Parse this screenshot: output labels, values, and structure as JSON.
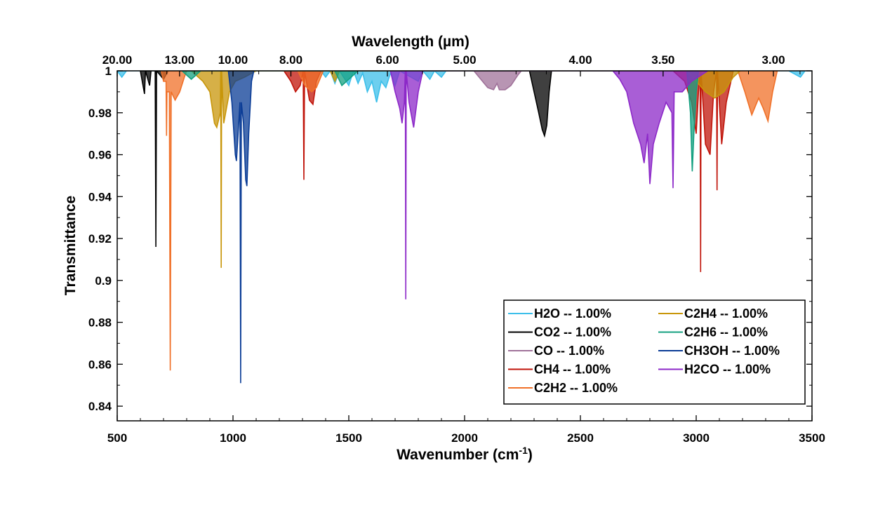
{
  "chart_data": {
    "type": "line",
    "xlabel": "Wavenumber (cm",
    "xlabel_sup": "-1",
    "xlabel_end": ")",
    "ylabel": "Transmittance",
    "top_xlabel": "Wavelength (µm)",
    "xlim": [
      500,
      3500
    ],
    "ylim": [
      0.833,
      1.0
    ],
    "x_ticks": [
      500,
      1000,
      1500,
      2000,
      2500,
      3000,
      3500
    ],
    "y_ticks": [
      0.84,
      0.86,
      0.88,
      0.9,
      0.92,
      0.94,
      0.96,
      0.98,
      1
    ],
    "y_tick_labels": [
      "0.84",
      "0.86",
      "0.88",
      "0.9",
      "0.92",
      "0.94",
      "0.96",
      "0.98",
      "1"
    ],
    "top_ticks_um": [
      20,
      13,
      10,
      8,
      6,
      5,
      4,
      3.5,
      3
    ],
    "top_tick_labels": [
      "20.00",
      "13.00",
      "10.00",
      "8.00",
      "6.00",
      "5.00",
      "4.00",
      "3.50",
      "3.00"
    ],
    "grid": false,
    "legend_position": "bottom-right",
    "series": [
      {
        "name": "H2O  --  1.00%",
        "color": "#3cbfea",
        "points": [
          [
            500,
            1
          ],
          [
            520,
            0.997
          ],
          [
            540,
            1
          ],
          [
            1380,
            1
          ],
          [
            1400,
            0.997
          ],
          [
            1420,
            1
          ],
          [
            1440,
            0.994
          ],
          [
            1460,
            1
          ],
          [
            1500,
            0.993
          ],
          [
            1520,
            1
          ],
          [
            1540,
            0.994
          ],
          [
            1560,
            0.999
          ],
          [
            1580,
            0.99
          ],
          [
            1600,
            0.995
          ],
          [
            1620,
            0.985
          ],
          [
            1640,
            0.995
          ],
          [
            1660,
            0.992
          ],
          [
            1680,
            0.999
          ],
          [
            1700,
            0.993
          ],
          [
            1720,
            1
          ],
          [
            1800,
            0.995
          ],
          [
            1820,
            1
          ],
          [
            1850,
            0.996
          ],
          [
            1870,
            1
          ],
          [
            1900,
            0.997
          ],
          [
            1920,
            1
          ],
          [
            3400,
            1
          ],
          [
            3450,
            0.997
          ],
          [
            3470,
            1
          ],
          [
            3500,
            1
          ]
        ]
      },
      {
        "name": "CO2  --  1.00%",
        "color": "#000000",
        "points": [
          [
            600,
            1
          ],
          [
            618,
            0.989
          ],
          [
            622,
            1
          ],
          [
            640,
            0.993
          ],
          [
            646,
            1
          ],
          [
            664,
            1
          ],
          [
            667,
            0.916
          ],
          [
            670,
            1
          ],
          [
            700,
            0.996
          ],
          [
            720,
            1
          ],
          [
            2280,
            1
          ],
          [
            2300,
            0.99
          ],
          [
            2320,
            0.98
          ],
          [
            2335,
            0.972
          ],
          [
            2345,
            0.969
          ],
          [
            2355,
            0.974
          ],
          [
            2365,
            0.99
          ],
          [
            2375,
            1
          ],
          [
            2390,
            1
          ]
        ]
      },
      {
        "name": "CO  --  1.00%",
        "color": "#a0729a",
        "points": [
          [
            2040,
            1
          ],
          [
            2070,
            0.996
          ],
          [
            2100,
            0.992
          ],
          [
            2125,
            0.991
          ],
          [
            2140,
            0.994
          ],
          [
            2150,
            0.991
          ],
          [
            2175,
            0.991
          ],
          [
            2200,
            0.993
          ],
          [
            2230,
            0.998
          ],
          [
            2245,
            1
          ]
        ]
      },
      {
        "name": "CH4  --  1.00%",
        "color": "#c0140a",
        "points": [
          [
            1220,
            1
          ],
          [
            1250,
            0.995
          ],
          [
            1270,
            0.99
          ],
          [
            1290,
            0.993
          ],
          [
            1303,
            1
          ],
          [
            1306,
            0.948
          ],
          [
            1309,
            1
          ],
          [
            1330,
            0.986
          ],
          [
            1345,
            0.984
          ],
          [
            1360,
            0.995
          ],
          [
            1380,
            1
          ],
          [
            2900,
            1
          ],
          [
            2950,
            0.995
          ],
          [
            2980,
            0.985
          ],
          [
            3000,
            0.97
          ],
          [
            3010,
            0.99
          ],
          [
            3017,
            1
          ],
          [
            3019,
            0.904
          ],
          [
            3021,
            1
          ],
          [
            3040,
            0.965
          ],
          [
            3060,
            0.96
          ],
          [
            3075,
            0.99
          ],
          [
            3088,
            1
          ],
          [
            3090,
            0.943
          ],
          [
            3092,
            1
          ],
          [
            3110,
            0.965
          ],
          [
            3130,
            0.985
          ],
          [
            3160,
            1
          ]
        ]
      },
      {
        "name": "C2H2  --  1.00%",
        "color": "#f07028",
        "points": [
          [
            690,
            1
          ],
          [
            700,
            0.995
          ],
          [
            711,
            0.995
          ],
          [
            713,
            0.969
          ],
          [
            715,
            0.99
          ],
          [
            725,
            0.99
          ],
          [
            729,
            0.857
          ],
          [
            733,
            0.99
          ],
          [
            750,
            0.986
          ],
          [
            770,
            0.99
          ],
          [
            790,
            0.997
          ],
          [
            800,
            1
          ],
          [
            1280,
            1
          ],
          [
            1310,
            0.993
          ],
          [
            1340,
            0.99
          ],
          [
            1360,
            0.992
          ],
          [
            1390,
            1
          ],
          [
            3180,
            1
          ],
          [
            3210,
            0.99
          ],
          [
            3240,
            0.979
          ],
          [
            3270,
            0.987
          ],
          [
            3290,
            0.982
          ],
          [
            3310,
            0.976
          ],
          [
            3330,
            0.99
          ],
          [
            3350,
            1
          ]
        ]
      },
      {
        "name": "C2H4  --  1.00%",
        "color": "#c8960a",
        "points": [
          [
            820,
            1
          ],
          [
            870,
            0.995
          ],
          [
            900,
            0.99
          ],
          [
            920,
            0.975
          ],
          [
            930,
            0.973
          ],
          [
            945,
            0.98
          ],
          [
            947,
            1
          ],
          [
            949,
            0.906
          ],
          [
            951,
            1
          ],
          [
            960,
            0.975
          ],
          [
            985,
            0.99
          ],
          [
            1010,
            0.995
          ],
          [
            1050,
            0.997
          ],
          [
            1100,
            1
          ],
          [
            1420,
            1
          ],
          [
            1440,
            0.995
          ],
          [
            1460,
            1
          ],
          [
            2960,
            1
          ],
          [
            3000,
            0.995
          ],
          [
            3040,
            0.99
          ],
          [
            3080,
            0.987
          ],
          [
            3120,
            0.99
          ],
          [
            3160,
            0.997
          ],
          [
            3190,
            1
          ]
        ]
      },
      {
        "name": "C2H6  --  1.00%",
        "color": "#14a080",
        "points": [
          [
            780,
            1
          ],
          [
            820,
            0.996
          ],
          [
            860,
            1
          ],
          [
            1440,
            1
          ],
          [
            1470,
            0.993
          ],
          [
            1500,
            0.996
          ],
          [
            1540,
            1
          ],
          [
            2960,
            1
          ],
          [
            2975,
            0.98
          ],
          [
            2983,
            0.952
          ],
          [
            2990,
            0.97
          ],
          [
            3000,
            0.99
          ],
          [
            3010,
            1
          ]
        ]
      },
      {
        "name": "CH3OH  --  1.00%",
        "color": "#0a3c96",
        "points": [
          [
            980,
            1
          ],
          [
            995,
            0.985
          ],
          [
            1010,
            0.96
          ],
          [
            1015,
            0.957
          ],
          [
            1022,
            0.97
          ],
          [
            1030,
            0.985
          ],
          [
            1033,
            0.851
          ],
          [
            1036,
            0.985
          ],
          [
            1045,
            0.975
          ],
          [
            1055,
            0.948
          ],
          [
            1060,
            0.945
          ],
          [
            1068,
            0.97
          ],
          [
            1080,
            0.995
          ],
          [
            1090,
            1
          ]
        ]
      },
      {
        "name": "H2CO  --  1.00%",
        "color": "#8c28c8",
        "points": [
          [
            1680,
            1
          ],
          [
            1700,
            0.99
          ],
          [
            1720,
            0.982
          ],
          [
            1730,
            0.975
          ],
          [
            1740,
            0.985
          ],
          [
            1744,
            1
          ],
          [
            1746,
            0.891
          ],
          [
            1748,
            1
          ],
          [
            1760,
            0.985
          ],
          [
            1780,
            0.973
          ],
          [
            1800,
            0.99
          ],
          [
            1820,
            1
          ],
          [
            2640,
            1
          ],
          [
            2670,
            0.996
          ],
          [
            2700,
            0.99
          ],
          [
            2730,
            0.975
          ],
          [
            2760,
            0.965
          ],
          [
            2775,
            0.956
          ],
          [
            2790,
            0.97
          ],
          [
            2800,
            0.946
          ],
          [
            2815,
            0.965
          ],
          [
            2840,
            0.975
          ],
          [
            2870,
            0.985
          ],
          [
            2895,
            0.98
          ],
          [
            2900,
            0.944
          ],
          [
            2905,
            0.99
          ],
          [
            2940,
            0.99
          ],
          [
            2980,
            0.995
          ],
          [
            3050,
            1
          ]
        ]
      }
    ]
  }
}
